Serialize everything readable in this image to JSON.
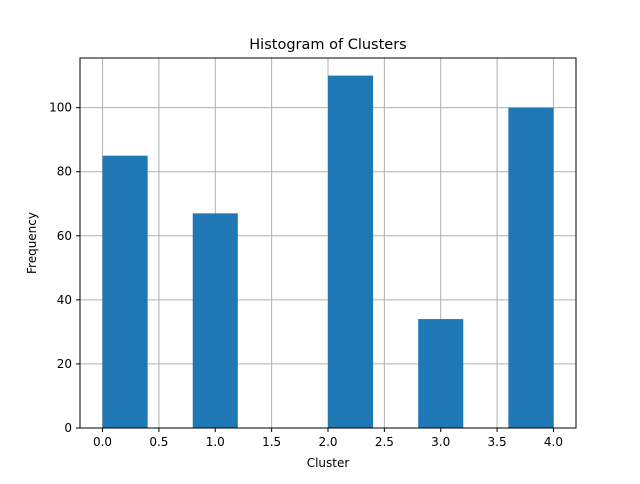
{
  "chart_data": {
    "type": "bar",
    "title": "Histogram of Clusters",
    "xlabel": "Cluster",
    "ylabel": "Frequency",
    "bins": [
      {
        "x0": 0.0,
        "x1": 0.4,
        "value": 85
      },
      {
        "x0": 0.4,
        "x1": 0.8,
        "value": 0
      },
      {
        "x0": 0.8,
        "x1": 1.2,
        "value": 67
      },
      {
        "x0": 1.2,
        "x1": 1.6,
        "value": 0
      },
      {
        "x0": 1.6,
        "x1": 2.0,
        "value": 0
      },
      {
        "x0": 2.0,
        "x1": 2.4,
        "value": 110
      },
      {
        "x0": 2.4,
        "x1": 2.8,
        "value": 0
      },
      {
        "x0": 2.8,
        "x1": 3.2,
        "value": 34
      },
      {
        "x0": 3.2,
        "x1": 3.6,
        "value": 0
      },
      {
        "x0": 3.6,
        "x1": 4.0,
        "value": 100
      }
    ],
    "xlim": [
      -0.2,
      4.2
    ],
    "ylim": [
      0,
      115.5
    ],
    "xticks": [
      0.0,
      0.5,
      1.0,
      1.5,
      2.0,
      2.5,
      3.0,
      3.5,
      4.0
    ],
    "xtick_labels": [
      "0.0",
      "0.5",
      "1.0",
      "1.5",
      "2.0",
      "2.5",
      "3.0",
      "3.5",
      "4.0"
    ],
    "yticks": [
      0,
      20,
      40,
      60,
      80,
      100
    ],
    "ytick_labels": [
      "0",
      "20",
      "40",
      "60",
      "80",
      "100"
    ],
    "grid": true,
    "colors": {
      "bar": "#1f77b4",
      "grid": "#b0b0b0",
      "axis": "#000000"
    }
  }
}
